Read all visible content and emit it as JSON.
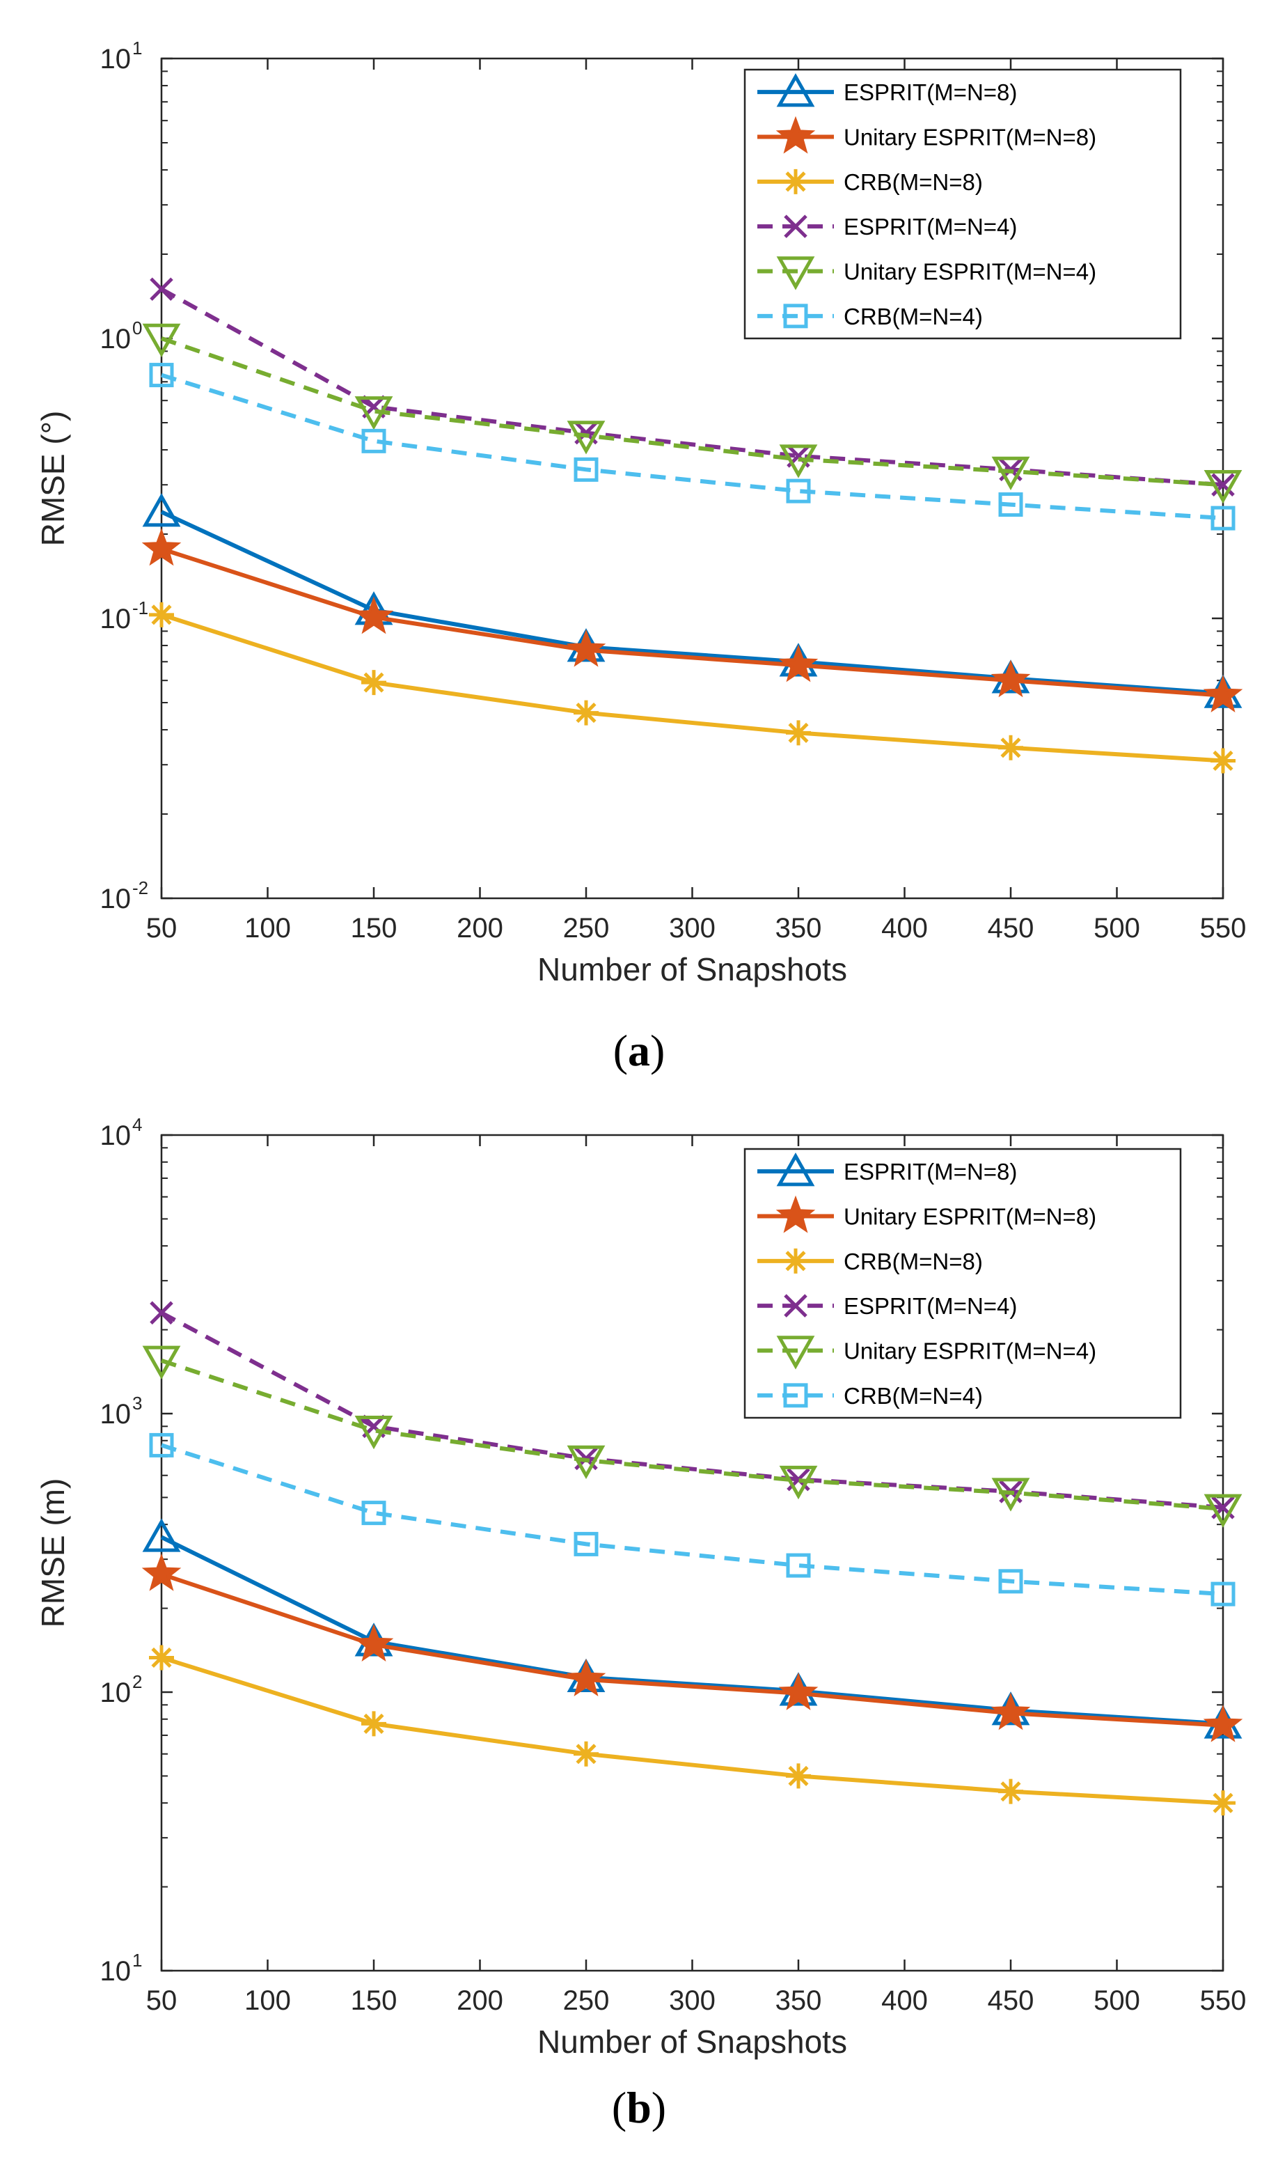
{
  "chart_data": [
    {
      "type": "line",
      "panel": "a",
      "caption": {
        "open": "(",
        "letter": "a",
        "close": ")"
      },
      "xlabel": "Number of Snapshots",
      "ylabel": "RMSE (°)",
      "xlim": [
        50,
        550
      ],
      "ylim_exp": [
        -2,
        1
      ],
      "y_scale": "log",
      "x_ticks": [
        50,
        100,
        150,
        200,
        250,
        300,
        350,
        400,
        450,
        500,
        550
      ],
      "y_ticks": [
        {
          "base": "10",
          "exp": "-2"
        },
        {
          "base": "10",
          "exp": "-1"
        },
        {
          "base": "10",
          "exp": "0"
        },
        {
          "base": "10",
          "exp": "1"
        }
      ],
      "grid": false,
      "legend_position": "top-right",
      "x": [
        50,
        150,
        250,
        350,
        450,
        550
      ],
      "series": [
        {
          "name": "ESPRIT(M=N=8)",
          "color": "#0072BD",
          "style": "solid",
          "marker": "triangle-up",
          "values": [
            0.24,
            0.107,
            0.079,
            0.07,
            0.061,
            0.054
          ]
        },
        {
          "name": "Unitary ESPRIT(M=N=8)",
          "color": "#D95319",
          "style": "solid",
          "marker": "pentagram",
          "values": [
            0.177,
            0.101,
            0.077,
            0.068,
            0.06,
            0.053
          ]
        },
        {
          "name": "CRB(M=N=8)",
          "color": "#EDB120",
          "style": "solid",
          "marker": "asterisk",
          "values": [
            0.103,
            0.059,
            0.046,
            0.039,
            0.0345,
            0.031
          ]
        },
        {
          "name": "ESPRIT(M=N=4)",
          "color": "#7E2F8E",
          "style": "dashed",
          "marker": "x",
          "values": [
            1.5,
            0.57,
            0.46,
            0.38,
            0.34,
            0.3
          ]
        },
        {
          "name": "Unitary ESPRIT(M=N=4)",
          "color": "#77AC30",
          "style": "dashed",
          "marker": "triangle-down",
          "values": [
            1.0,
            0.55,
            0.45,
            0.37,
            0.335,
            0.3
          ]
        },
        {
          "name": "CRB(M=N=4)",
          "color": "#4DBEEE",
          "style": "dashed",
          "marker": "square",
          "values": [
            0.74,
            0.43,
            0.34,
            0.285,
            0.255,
            0.228
          ]
        }
      ]
    },
    {
      "type": "line",
      "panel": "b",
      "caption": {
        "open": "(",
        "letter": "b",
        "close": ")"
      },
      "xlabel": "Number of Snapshots",
      "ylabel": "RMSE (m)",
      "xlim": [
        50,
        550
      ],
      "ylim_exp": [
        1,
        4
      ],
      "y_scale": "log",
      "x_ticks": [
        50,
        100,
        150,
        200,
        250,
        300,
        350,
        400,
        450,
        500,
        550
      ],
      "y_ticks": [
        {
          "base": "10",
          "exp": "1"
        },
        {
          "base": "10",
          "exp": "2"
        },
        {
          "base": "10",
          "exp": "3"
        },
        {
          "base": "10",
          "exp": "4"
        }
      ],
      "grid": false,
      "legend_position": "top-right",
      "x": [
        50,
        150,
        250,
        350,
        450,
        550
      ],
      "series": [
        {
          "name": "ESPRIT(M=N=8)",
          "color": "#0072BD",
          "style": "solid",
          "marker": "triangle-up",
          "values": [
            360,
            152,
            113,
            101,
            86,
            77
          ]
        },
        {
          "name": "Unitary ESPRIT(M=N=8)",
          "color": "#D95319",
          "style": "solid",
          "marker": "pentagram",
          "values": [
            265,
            148,
            111,
            99,
            84,
            76
          ]
        },
        {
          "name": "CRB(M=N=8)",
          "color": "#EDB120",
          "style": "solid",
          "marker": "asterisk",
          "values": [
            133,
            77,
            60,
            50,
            44,
            40
          ]
        },
        {
          "name": "ESPRIT(M=N=4)",
          "color": "#7E2F8E",
          "style": "dashed",
          "marker": "x",
          "values": [
            2300,
            900,
            690,
            580,
            525,
            460
          ]
        },
        {
          "name": "Unitary ESPRIT(M=N=4)",
          "color": "#77AC30",
          "style": "dashed",
          "marker": "triangle-down",
          "values": [
            1550,
            870,
            680,
            575,
            520,
            455
          ]
        },
        {
          "name": "CRB(M=N=4)",
          "color": "#4DBEEE",
          "style": "dashed",
          "marker": "square",
          "values": [
            770,
            440,
            340,
            285,
            250,
            225
          ]
        }
      ]
    }
  ]
}
